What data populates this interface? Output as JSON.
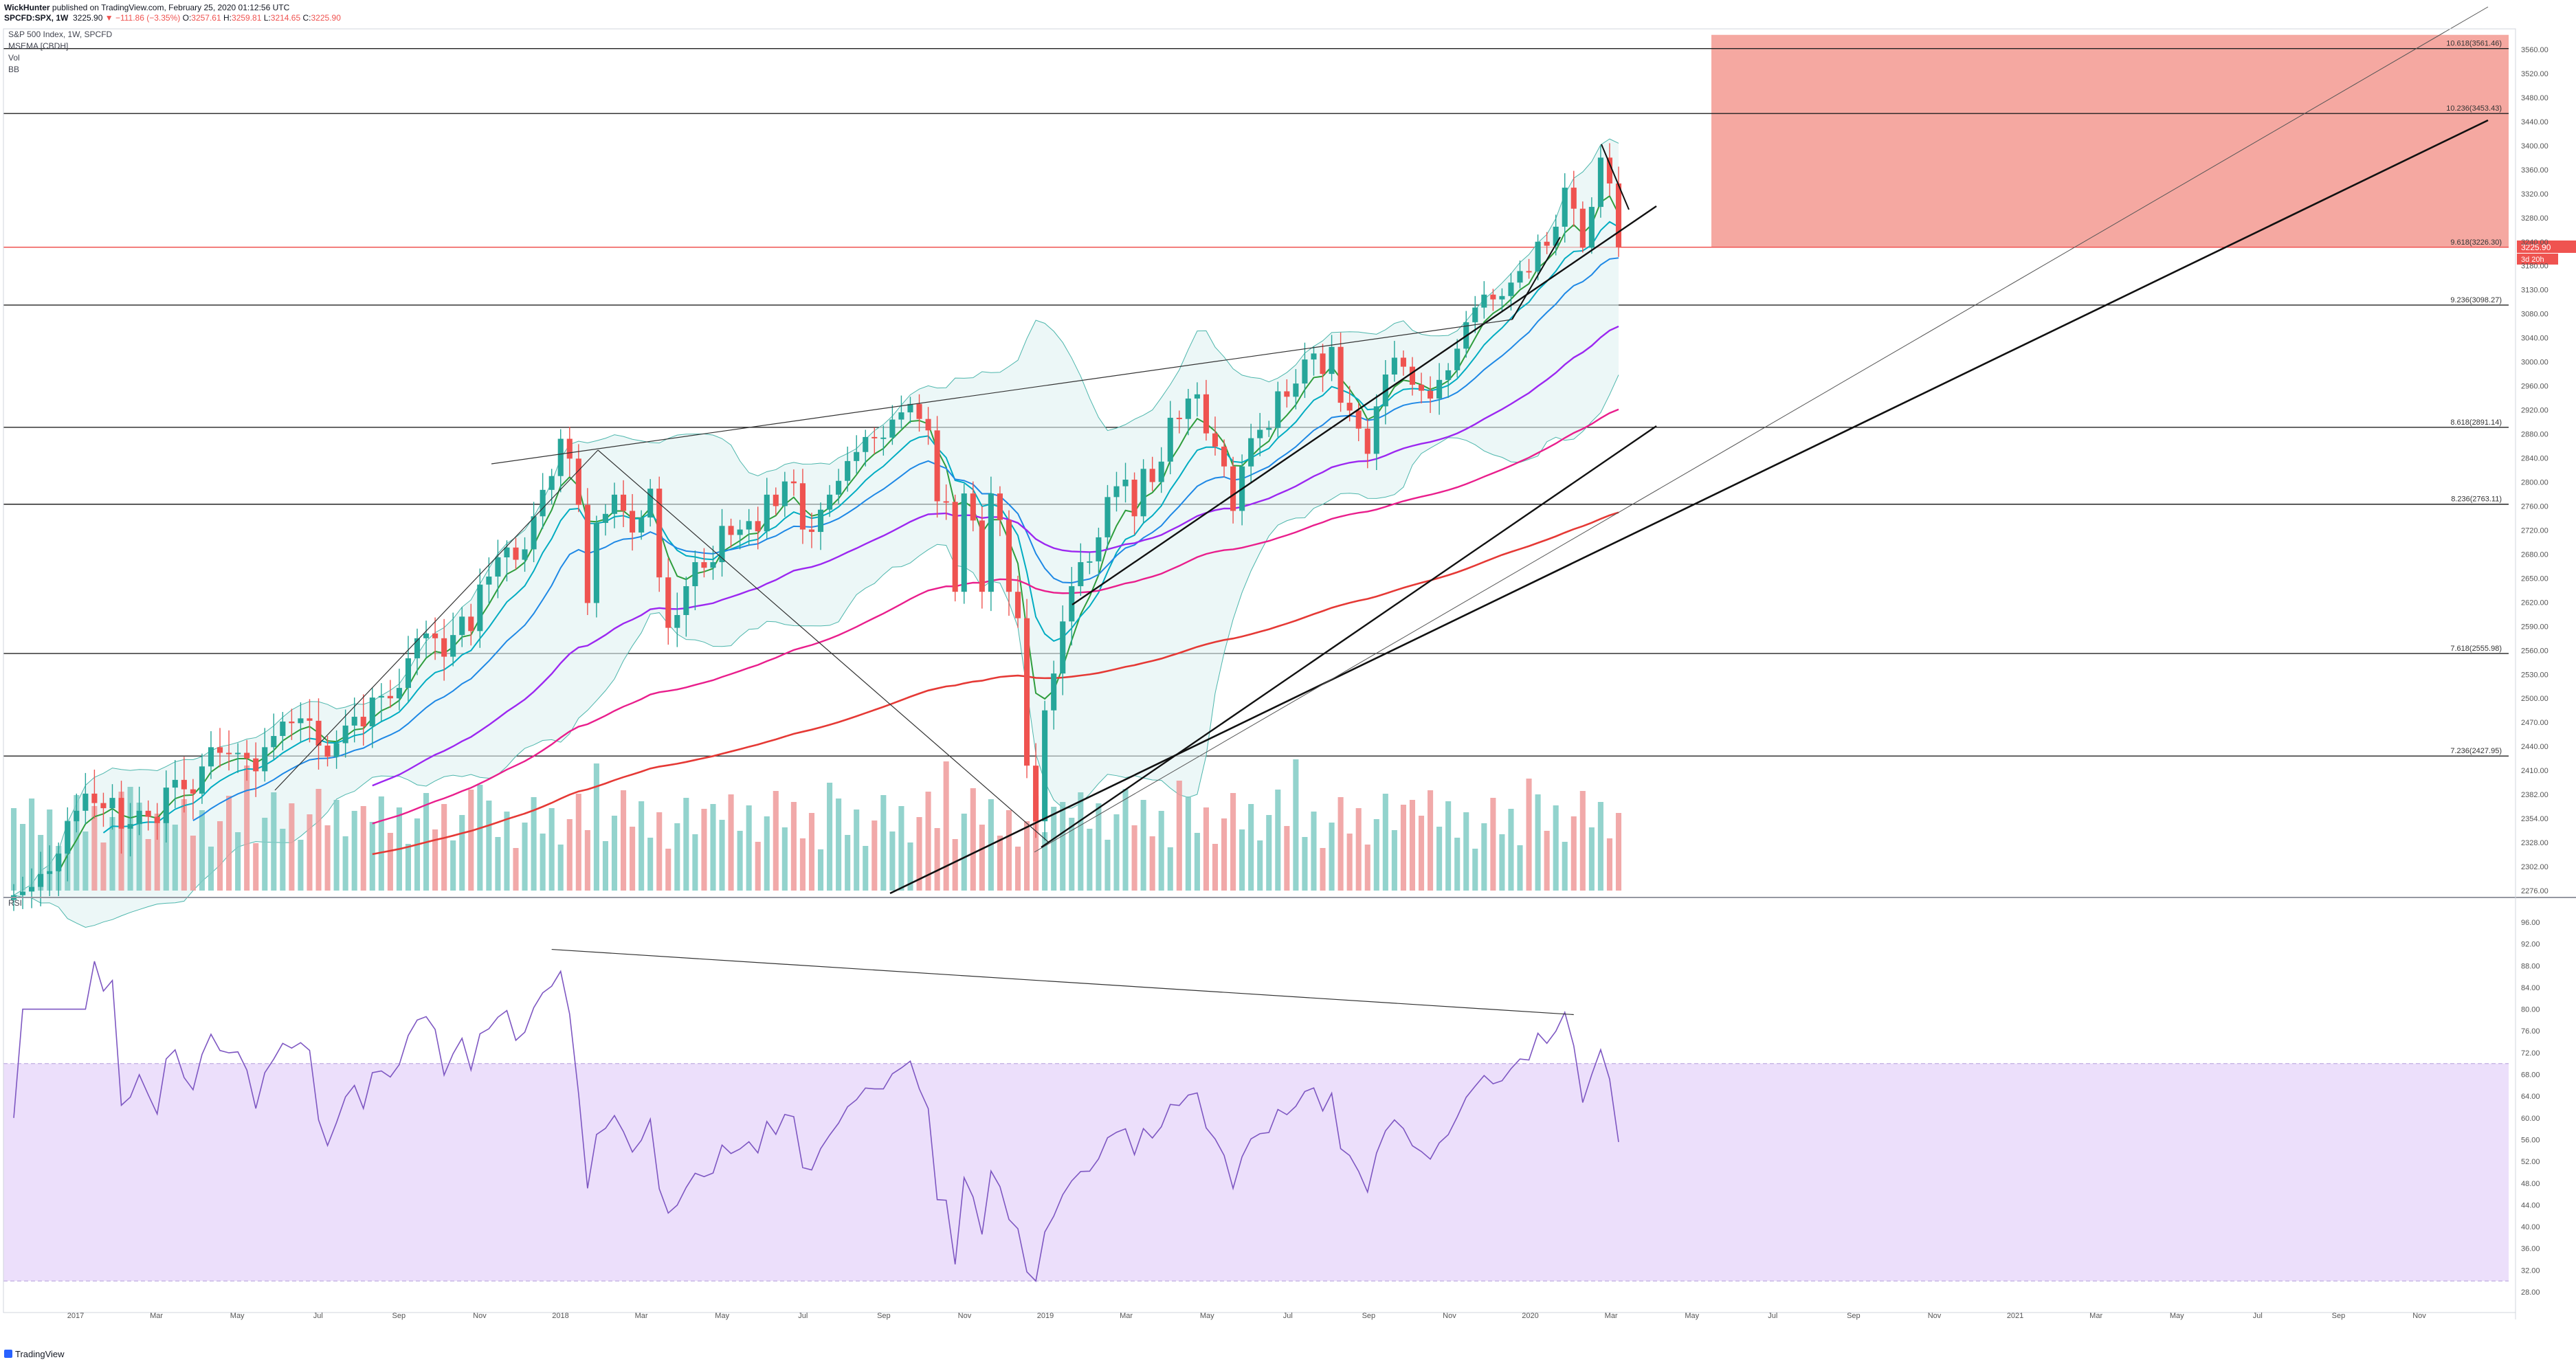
{
  "header": {
    "author": "WickHunter",
    "published": "published on TradingView.com, February 25, 2020 01:12:56 UTC",
    "symbol": "SPCFD:SPX, 1W",
    "last": "3225.90",
    "change": "▼ −111.86 (−3.35%)",
    "o_label": "O:",
    "o": "3257.61",
    "h_label": "H:",
    "h": "3259.81",
    "l_label": "L:",
    "l": "3214.65",
    "c_label": "C:",
    "c": "3225.90"
  },
  "legend": {
    "title": "S&P 500 Index, 1W, SPCFD",
    "ind1": "MSEMA [CBDH]",
    "ind2": "Vol",
    "ind3": "BB",
    "rsi": "RSI"
  },
  "colors": {
    "bull": "#26a69a",
    "bull_soft": "#80cbc4",
    "bear": "#ef5350",
    "bear_soft": "#ef9a9a",
    "zone": "#f28b82",
    "rsi_band": "#ecdffb",
    "bb_fill": "#e0f2f1",
    "ema_green": "#2e9d3c",
    "ema_cyan": "#00acc1",
    "ema_blue": "#1e88e5",
    "ema_purple": "#9c27f0",
    "ema_magenta": "#e91e8c",
    "ema_red": "#e53935",
    "rsi_line": "#7e57c2"
  },
  "chart_data": {
    "type": "candlestick",
    "price_axis": [
      "3560.00",
      "3520.00",
      "3480.00",
      "3440.00",
      "3400.00",
      "3360.00",
      "3320.00",
      "3280.00",
      "3240.00",
      "3180.00",
      "3130.00",
      "3080.00",
      "3040.00",
      "3000.00",
      "2960.00",
      "2920.00",
      "2880.00",
      "2840.00",
      "2800.00",
      "2760.00",
      "2720.00",
      "2680.00",
      "2650.00",
      "2620.00",
      "2590.00",
      "2560.00",
      "2530.00",
      "2500.00",
      "2470.00",
      "2440.00",
      "2410.00",
      "2382.00",
      "2354.00",
      "2328.00",
      "2302.00",
      "2276.00"
    ],
    "rsi_axis": [
      "96.00",
      "92.00",
      "88.00",
      "84.00",
      "80.00",
      "76.00",
      "72.00",
      "68.00",
      "64.00",
      "60.00",
      "56.00",
      "52.00",
      "48.00",
      "44.00",
      "40.00",
      "36.00",
      "32.00",
      "28.00"
    ],
    "time_axis": [
      "2017",
      "Mar",
      "May",
      "Jul",
      "Sep",
      "Nov",
      "2018",
      "Mar",
      "May",
      "Jul",
      "Sep",
      "Nov",
      "2019",
      "Mar",
      "May",
      "Jul",
      "Sep",
      "Nov",
      "2020",
      "Mar",
      "May",
      "Jul",
      "Sep",
      "Nov",
      "2021",
      "Mar",
      "May",
      "Jul",
      "Sep",
      "Nov"
    ],
    "fib_levels": [
      {
        "label": "10.618(3561.46)",
        "price": 3561.46
      },
      {
        "label": "10.236(3453.43)",
        "price": 3453.43
      },
      {
        "label": "9.618(3226.30)",
        "price": 3226.3
      },
      {
        "label": "9.236(3098.27)",
        "price": 3098.27
      },
      {
        "label": "8.618(2891.14)",
        "price": 2891.14
      },
      {
        "label": "8.236(2763.11)",
        "price": 2763.11
      },
      {
        "label": "7.618(2555.98)",
        "price": 2555.98
      },
      {
        "label": "7.236(2427.95)",
        "price": 2427.95
      }
    ],
    "last_price": {
      "label": "3225.90",
      "price": 3225.9,
      "countdown": "3d 20h"
    },
    "weekly_close": [
      2271,
      2275,
      2280,
      2294,
      2297,
      2316,
      2351,
      2363,
      2383,
      2372,
      2366,
      2378,
      2343,
      2348,
      2363,
      2356,
      2349,
      2390,
      2399,
      2388,
      2383,
      2415,
      2439,
      2432,
      2431,
      2432,
      2425,
      2409,
      2439,
      2453,
      2471,
      2469,
      2475,
      2472,
      2441,
      2427,
      2444,
      2466,
      2477,
      2465,
      2501,
      2503,
      2500,
      2513,
      2550,
      2575,
      2581,
      2575,
      2552,
      2579,
      2602,
      2584,
      2642,
      2652,
      2676,
      2691,
      2673,
      2688,
      2743,
      2787,
      2810,
      2872,
      2839,
      2762,
      2619,
      2732,
      2747,
      2779,
      2752,
      2716,
      2741,
      2789,
      2651,
      2588,
      2604,
      2640,
      2670,
      2663,
      2670,
      2727,
      2712,
      2721,
      2735,
      2718,
      2779,
      2760,
      2801,
      2798,
      2721,
      2717,
      2754,
      2779,
      2802,
      2835,
      2850,
      2875,
      2874,
      2874,
      2904,
      2916,
      2930,
      2905,
      2886,
      2768,
      2767,
      2633,
      2781,
      2736,
      2633,
      2781,
      2737,
      2633,
      2600,
      2416,
      2351,
      2485,
      2531,
      2596,
      2640,
      2670,
      2671,
      2708,
      2775,
      2793,
      2804,
      2743,
      2822,
      2800,
      2834,
      2907,
      2905,
      2939,
      2946,
      2881,
      2859,
      2826,
      2752,
      2826,
      2873,
      2887,
      2890,
      2951,
      2942,
      2964,
      3004,
      3014,
      2980,
      3025,
      2932,
      2919,
      2889,
      2847,
      2926,
      2979,
      3007,
      2992,
      2962,
      2952,
      2939,
      2970,
      2986,
      3022,
      3066,
      3093,
      3120,
      3110,
      3117,
      3145,
      3169,
      3168,
      3240,
      3230,
      3265,
      3330,
      3295,
      3225,
      3298,
      3380,
      3337,
      3226
    ]
  }
}
